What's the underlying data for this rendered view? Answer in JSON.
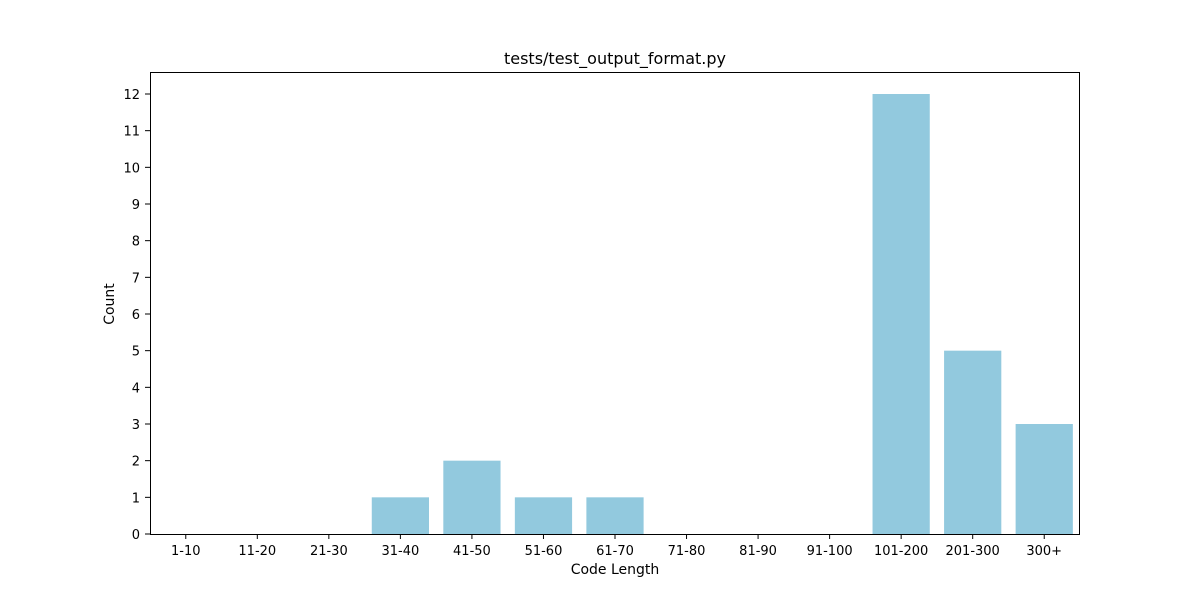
{
  "chart_data": {
    "type": "bar",
    "title": "tests/test_output_format.py",
    "xlabel": "Code Length",
    "ylabel": "Count",
    "categories": [
      "1-10",
      "11-20",
      "21-30",
      "31-40",
      "41-50",
      "51-60",
      "61-70",
      "71-80",
      "81-90",
      "91-100",
      "101-200",
      "201-300",
      "300+"
    ],
    "values": [
      0,
      0,
      0,
      1,
      2,
      1,
      1,
      0,
      0,
      0,
      12,
      5,
      3
    ],
    "yticks": [
      0,
      1,
      2,
      3,
      4,
      5,
      6,
      7,
      8,
      9,
      10,
      11,
      12
    ],
    "ylim": [
      0,
      12.6
    ],
    "grid": false,
    "legend": "none",
    "bar_color": "#92c9de"
  }
}
